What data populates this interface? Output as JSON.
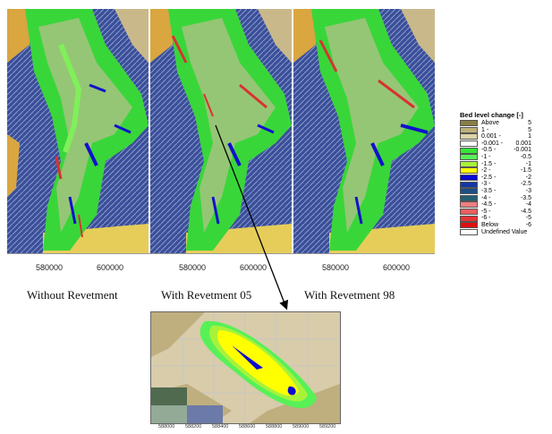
{
  "panels": [
    {
      "caption": "Without Revetment",
      "xticks": [
        "580000",
        "600000"
      ]
    },
    {
      "caption": "With Revetment 05",
      "xticks": [
        "580000",
        "600000"
      ]
    },
    {
      "caption": "With Revetment 98",
      "xticks": [
        "580000",
        "600000"
      ]
    }
  ],
  "legend": {
    "title": "Bed level change [-]",
    "rows": [
      {
        "a": "Above",
        "b": "5",
        "color": "#8a7d45"
      },
      {
        "a": "1 -",
        "b": "5",
        "color": "#bfb07a"
      },
      {
        "a": "0.001 -",
        "b": "1",
        "color": "#ddd4a6"
      },
      {
        "a": "-0.001 -",
        "b": "0.001",
        "color": "#ffffff"
      },
      {
        "a": "-0.5 -",
        "b": "-0.001",
        "color": "#33e633"
      },
      {
        "a": "-1 -",
        "b": "-0.5",
        "color": "#57f157"
      },
      {
        "a": "-1.5 -",
        "b": "-1",
        "color": "#a8f23a"
      },
      {
        "a": "-2 -",
        "b": "-1.5",
        "color": "#ffff00"
      },
      {
        "a": "-2.5 -",
        "b": "-2",
        "color": "#0a0ad2"
      },
      {
        "a": "-3 -",
        "b": "-2.5",
        "color": "#1238a8"
      },
      {
        "a": "-3.5 -",
        "b": "-3",
        "color": "#1d4e85"
      },
      {
        "a": "-4 -",
        "b": "-3.5",
        "color": "#245f73"
      },
      {
        "a": "-4.5 -",
        "b": "-4",
        "color": "#f07f7f"
      },
      {
        "a": "-5 -",
        "b": "-4.5",
        "color": "#ec5e5e"
      },
      {
        "a": "-6 -",
        "b": "-5",
        "color": "#e83333"
      },
      {
        "a": "Below",
        "b": "-6",
        "color": "#e01010"
      },
      {
        "a": "Undefined Value",
        "b": "",
        "color": "#ffffff"
      }
    ]
  },
  "zoom": {
    "xticks": [
      "588000",
      "588200",
      "588400",
      "588600",
      "588800",
      "589000",
      "589200"
    ]
  }
}
